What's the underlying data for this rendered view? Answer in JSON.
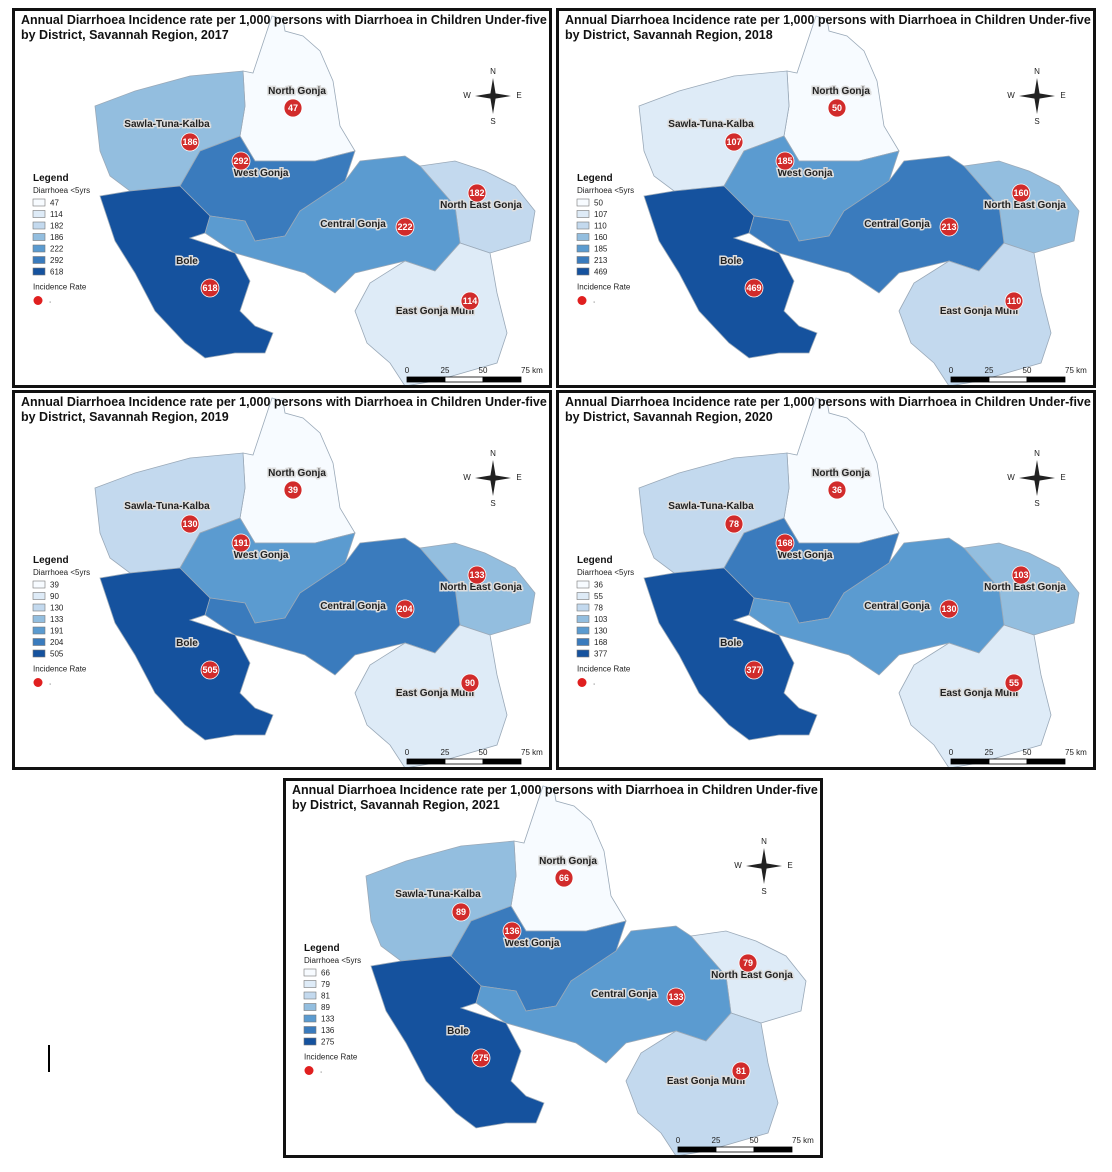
{
  "palette": [
    "#f7fbff",
    "#deebf7",
    "#c3d9ee",
    "#93bedf",
    "#5b9bd0",
    "#3a7bbd",
    "#15529e"
  ],
  "maps": [
    {
      "title": "Annual Diarrhoea Incidence rate per 1,000 persons with Diarrhoea in Children Under-five by District, Savannah Region, 2017",
      "legend": {
        "title": "Legend",
        "subtitle": "Diarrhoea <5yrs",
        "classes": [
          47,
          114,
          182,
          186,
          222,
          292,
          618
        ],
        "incidence_label": "Incidence Rate",
        "incidence_symbol": "."
      },
      "districts": [
        {
          "name": "North Gonja",
          "value": 47
        },
        {
          "name": "Sawla-Tuna-Kalba",
          "value": 186
        },
        {
          "name": "West Gonja",
          "value": 292
        },
        {
          "name": "North East Gonja",
          "value": 182
        },
        {
          "name": "Central Gonja",
          "value": 222
        },
        {
          "name": "Bole",
          "value": 618
        },
        {
          "name": "East Gonja Muni",
          "value": 114
        }
      ],
      "compass": {
        "n": "N",
        "e": "E",
        "s": "S",
        "w": "W"
      },
      "scale": [
        "0",
        "25",
        "50",
        "75 km"
      ]
    },
    {
      "title": "Annual Diarrhoea Incidence rate per 1,000 persons with Diarrhoea in Children Under-five by District, Savannah Region, 2018",
      "legend": {
        "title": "Legend",
        "subtitle": "Diarrhoea <5yrs",
        "classes": [
          50,
          107,
          110,
          160,
          185,
          213,
          469
        ],
        "incidence_label": "Incidence Rate",
        "incidence_symbol": "."
      },
      "districts": [
        {
          "name": "North Gonja",
          "value": 50
        },
        {
          "name": "Sawla-Tuna-Kalba",
          "value": 107
        },
        {
          "name": "West Gonja",
          "value": 185
        },
        {
          "name": "North East Gonja",
          "value": 160
        },
        {
          "name": "Central Gonja",
          "value": 213
        },
        {
          "name": "Bole",
          "value": 469
        },
        {
          "name": "East Gonja Muni",
          "value": 110
        }
      ],
      "compass": {
        "n": "N",
        "e": "E",
        "s": "S",
        "w": "W"
      },
      "scale": [
        "0",
        "25",
        "50",
        "75 km"
      ]
    },
    {
      "title": "Annual Diarrhoea Incidence rate per 1,000 persons with Diarrhoea in Children Under-five by District, Savannah Region, 2019",
      "legend": {
        "title": "Legend",
        "subtitle": "Diarrhoea <5yrs",
        "classes": [
          39,
          90,
          130,
          133,
          191,
          204,
          505
        ],
        "incidence_label": "Incidence Rate",
        "incidence_symbol": "."
      },
      "districts": [
        {
          "name": "North Gonja",
          "value": 39
        },
        {
          "name": "Sawla-Tuna-Kalba",
          "value": 130
        },
        {
          "name": "West Gonja",
          "value": 191
        },
        {
          "name": "North East Gonja",
          "value": 133
        },
        {
          "name": "Central Gonja",
          "value": 204
        },
        {
          "name": "Bole",
          "value": 505
        },
        {
          "name": "East Gonja Muni",
          "value": 90
        }
      ],
      "compass": {
        "n": "N",
        "e": "E",
        "s": "S",
        "w": "W"
      },
      "scale": [
        "0",
        "25",
        "50",
        "75 km"
      ]
    },
    {
      "title": "Annual Diarrhoea Incidence rate per 1,000 persons with Diarrhoea in Children Under-five by District, Savannah Region, 2020",
      "legend": {
        "title": "Legend",
        "subtitle": "Diarrhoea <5yrs",
        "classes": [
          36,
          55,
          78,
          103,
          130,
          168,
          377
        ],
        "incidence_label": "Incidence Rate",
        "incidence_symbol": "."
      },
      "districts": [
        {
          "name": "North Gonja",
          "value": 36
        },
        {
          "name": "Sawla-Tuna-Kalba",
          "value": 78
        },
        {
          "name": "West Gonja",
          "value": 168
        },
        {
          "name": "North East Gonja",
          "value": 103
        },
        {
          "name": "Central Gonja",
          "value": 130
        },
        {
          "name": "Bole",
          "value": 377
        },
        {
          "name": "East Gonja Muni",
          "value": 55
        }
      ],
      "compass": {
        "n": "N",
        "e": "E",
        "s": "S",
        "w": "W"
      },
      "scale": [
        "0",
        "25",
        "50",
        "75 km"
      ]
    },
    {
      "title": "Annual Diarrhoea Incidence rate per 1,000 persons with Diarrhoea in Children Under-five by District, Savannah Region, 2021",
      "legend": {
        "title": "Legend",
        "subtitle": "Diarrhoea <5yrs",
        "classes": [
          66,
          79,
          81,
          89,
          133,
          136,
          275
        ],
        "incidence_label": "Incidence Rate",
        "incidence_symbol": "."
      },
      "districts": [
        {
          "name": "North Gonja",
          "value": 66
        },
        {
          "name": "Sawla-Tuna-Kalba",
          "value": 89
        },
        {
          "name": "West Gonja",
          "value": 136
        },
        {
          "name": "North East Gonja",
          "value": 79
        },
        {
          "name": "Central Gonja",
          "value": 133
        },
        {
          "name": "Bole",
          "value": 275
        },
        {
          "name": "East Gonja Muni",
          "value": 81
        }
      ],
      "compass": {
        "n": "N",
        "e": "E",
        "s": "S",
        "w": "W"
      },
      "scale": [
        "0",
        "25",
        "50",
        "75 km"
      ]
    }
  ]
}
